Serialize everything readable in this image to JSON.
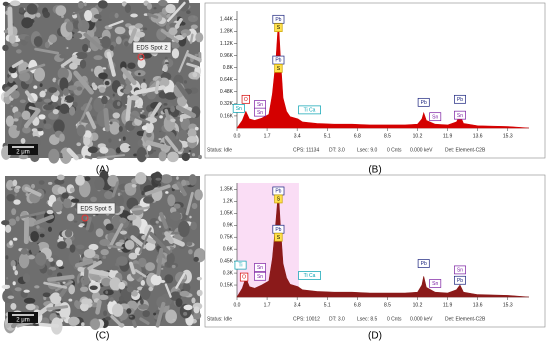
{
  "images": [
    {
      "panel_label": "(A)",
      "spot": "EDS Spot 2",
      "scale": "2 μm"
    },
    {
      "panel_label": "(C)",
      "spot": "EDS Spot 5",
      "scale": "2 μm"
    }
  ],
  "chart_data": [
    {
      "type": "area",
      "panel_label": "(B)",
      "color": "#d40000",
      "x": [
        0,
        0.3,
        0.5,
        0.7,
        1.0,
        1.4,
        1.8,
        2.0,
        2.2,
        2.34,
        2.45,
        2.6,
        2.8,
        3.0,
        3.44,
        3.7,
        4.5,
        5.5,
        6.5,
        7.5,
        8.5,
        9.5,
        10.2,
        10.45,
        10.55,
        10.7,
        11.2,
        11.9,
        12.4,
        12.6,
        12.8,
        13.6,
        15.3,
        16.5
      ],
      "values": [
        0,
        100,
        220,
        120,
        100,
        130,
        180,
        450,
        900,
        1420,
        950,
        400,
        220,
        150,
        120,
        80,
        60,
        50,
        50,
        40,
        40,
        40,
        50,
        120,
        200,
        100,
        50,
        40,
        80,
        170,
        60,
        30,
        20,
        0
      ],
      "xlim": [
        0,
        16.5
      ],
      "ylim": [
        0,
        1550
      ],
      "xticks": [
        {
          "value": 0,
          "label": "0.0"
        },
        1.7,
        3.4,
        5.1,
        6.8,
        8.5,
        10.2,
        11.9,
        13.6,
        15.3
      ],
      "yticks": [
        {
          "value": 160,
          "label": "0.16K"
        },
        {
          "value": 320,
          "label": "0.32K"
        },
        {
          "value": 480,
          "label": "0.48K"
        },
        {
          "value": 640,
          "label": "0.64K"
        },
        {
          "value": 800,
          "label": "0.8K"
        },
        {
          "value": 960,
          "label": "0.96K"
        },
        {
          "value": 1120,
          "label": "1.12K"
        },
        {
          "value": 1280,
          "label": "1.28K"
        },
        {
          "value": 1440,
          "label": "1.44K"
        }
      ],
      "annotations": [
        {
          "text": "Pb",
          "x": 2.34,
          "y": 1440,
          "color": "#1a237e"
        },
        {
          "text": "S",
          "x": 2.34,
          "y": 1330,
          "color": "#c9a400"
        },
        {
          "text": "Pb",
          "x": 2.34,
          "y": 900,
          "color": "#1a237e"
        },
        {
          "text": "S",
          "x": 2.34,
          "y": 790,
          "color": "#c9a400"
        },
        {
          "text": "O",
          "x": 0.5,
          "y": 380,
          "color": "#d40000"
        },
        {
          "text": "Sn",
          "x": 0.1,
          "y": 260,
          "color": "#00a0b0"
        },
        {
          "text": "Sn",
          "x": 1.3,
          "y": 310,
          "color": "#7b1fa2"
        },
        {
          "text": "Sn",
          "x": 1.3,
          "y": 210,
          "color": "#7b1fa2"
        },
        {
          "text": "Ti Ca",
          "x": 4.1,
          "y": 240,
          "color": "#00a0b0"
        },
        {
          "text": "Pb",
          "x": 10.55,
          "y": 340,
          "color": "#1a237e"
        },
        {
          "text": "Sn",
          "x": 11.2,
          "y": 150,
          "color": "#7b1fa2"
        },
        {
          "text": "Pb",
          "x": 12.6,
          "y": 380,
          "color": "#1a237e"
        },
        {
          "text": "Sn",
          "x": 12.6,
          "y": 170,
          "color": "#7b1fa2"
        }
      ],
      "status": [
        "Status: Idle",
        "CPS: 11134",
        "DT: 3.0",
        "Lsec: 9.0",
        "0 Cnts",
        "0.000 keV",
        "Det: Element-C2B"
      ]
    },
    {
      "type": "area",
      "panel_label": "(D)",
      "color": "#8b1a1a",
      "x": [
        0,
        0.3,
        0.5,
        0.7,
        1.0,
        1.4,
        1.8,
        2.0,
        2.2,
        2.34,
        2.45,
        2.6,
        2.8,
        3.0,
        3.44,
        3.7,
        4.5,
        5.5,
        6.5,
        7.5,
        8.5,
        9.5,
        10.2,
        10.45,
        10.55,
        10.7,
        11.2,
        11.9,
        12.4,
        12.6,
        12.8,
        13.6,
        15.3,
        16.5
      ],
      "values": [
        0,
        110,
        240,
        130,
        110,
        150,
        200,
        480,
        950,
        1330,
        900,
        420,
        240,
        160,
        130,
        90,
        70,
        60,
        60,
        50,
        50,
        50,
        60,
        150,
        260,
        120,
        60,
        50,
        90,
        150,
        60,
        30,
        20,
        0
      ],
      "xlim": [
        0,
        16.5
      ],
      "ylim": [
        0,
        1430
      ],
      "roi": [
        0,
        3.5
      ],
      "xticks": [
        {
          "value": 0,
          "label": "0.0"
        },
        1.7,
        3.4,
        5.1,
        6.8,
        8.5,
        10.2,
        11.9,
        13.6,
        15.3
      ],
      "yticks": [
        {
          "value": 150,
          "label": "0.15K"
        },
        {
          "value": 300,
          "label": "0.3K"
        },
        {
          "value": 450,
          "label": "0.45K"
        },
        {
          "value": 600,
          "label": "0.6K"
        },
        {
          "value": 750,
          "label": "0.75K"
        },
        {
          "value": 900,
          "label": "0.9K"
        },
        {
          "value": 1050,
          "label": "1.05K"
        },
        {
          "value": 1200,
          "label": "1.2K"
        },
        {
          "value": 1350,
          "label": "1.35K"
        }
      ],
      "annotations": [
        {
          "text": "Pb",
          "x": 2.34,
          "y": 1330,
          "color": "#1a237e"
        },
        {
          "text": "S",
          "x": 2.34,
          "y": 1230,
          "color": "#c9a400"
        },
        {
          "text": "Pb",
          "x": 2.34,
          "y": 850,
          "color": "#1a237e"
        },
        {
          "text": "S",
          "x": 2.34,
          "y": 750,
          "color": "#c9a400"
        },
        {
          "text": "Ti",
          "x": 0.2,
          "y": 400,
          "color": "#00a0b0"
        },
        {
          "text": "O",
          "x": 0.4,
          "y": 250,
          "color": "#d40000"
        },
        {
          "text": "Sn",
          "x": 1.3,
          "y": 370,
          "color": "#7b1fa2"
        },
        {
          "text": "Sn",
          "x": 1.3,
          "y": 260,
          "color": "#7b1fa2"
        },
        {
          "text": "Ti Ca",
          "x": 4.1,
          "y": 270,
          "color": "#00a0b0"
        },
        {
          "text": "Pb",
          "x": 10.55,
          "y": 420,
          "color": "#1a237e"
        },
        {
          "text": "Sn",
          "x": 11.2,
          "y": 170,
          "color": "#7b1fa2"
        },
        {
          "text": "Sn",
          "x": 12.6,
          "y": 340,
          "color": "#7b1fa2"
        },
        {
          "text": "Pb",
          "x": 12.6,
          "y": 210,
          "color": "#1a237e"
        }
      ],
      "status": [
        "Status: Idle",
        "CPS: 10012",
        "DT: 3.0",
        "Lsec: 8.5",
        "0 Cnts",
        "0.000 keV",
        "Det: Element-C2B"
      ]
    }
  ]
}
